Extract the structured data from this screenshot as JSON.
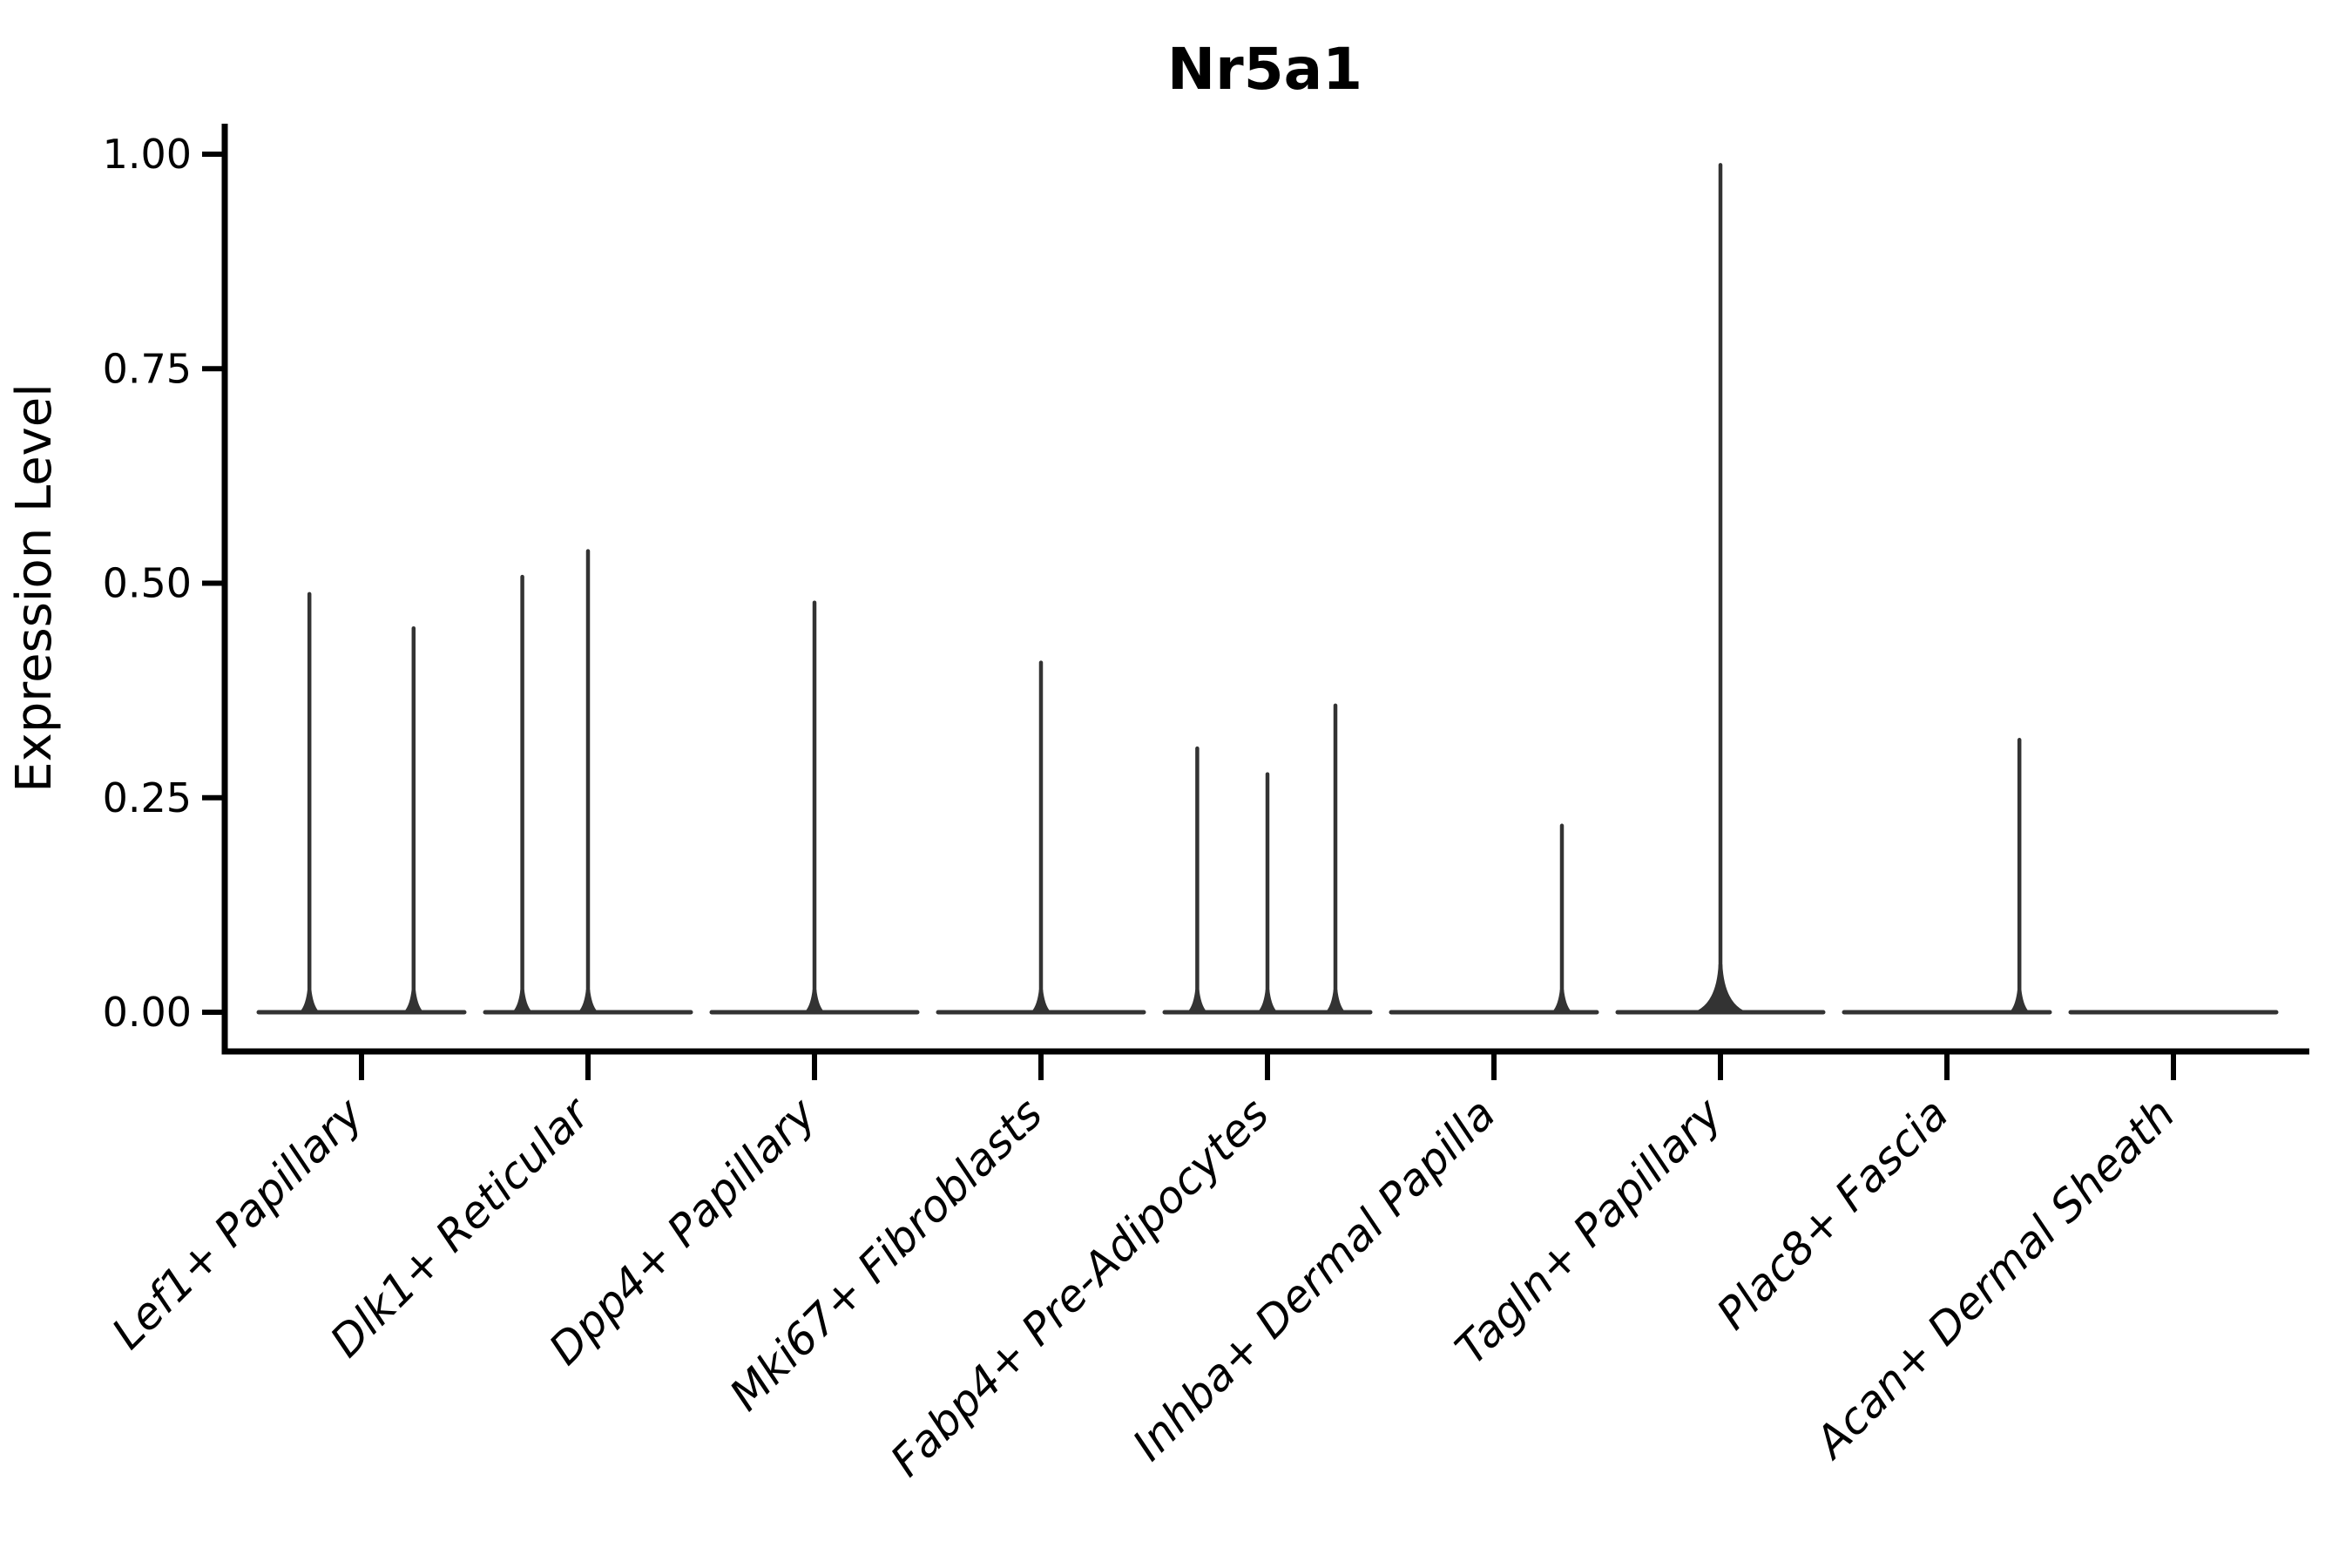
{
  "title": "Nr5a1",
  "y_axis": {
    "label": "Expression Level",
    "tick_labels": [
      "1.00",
      "0.75",
      "0.50",
      "0.25",
      "0.00"
    ],
    "tick_values": [
      1.0,
      0.75,
      0.5,
      0.25,
      0.0
    ]
  },
  "x_axis": {
    "categories": [
      "Lef1+ Papillary",
      "Dlk1+ Reticular",
      "Dpp4+ Papillary",
      "Mki67+ Fibroblasts",
      "Fabp4+ Pre-Adipocytes",
      "Inhba+ Dermal Papilla",
      "Tagln+ Papillary",
      "Plac8+ Fascia",
      "Acan+ Dermal Sheath"
    ]
  },
  "colors": {
    "violin": "#333333",
    "axis": "#000000",
    "text": "#000000",
    "background": "#ffffff"
  },
  "chart_data": {
    "type": "violin",
    "title": "Nr5a1",
    "xlabel": "",
    "ylabel": "Expression Level",
    "ylim": [
      0,
      1.0
    ],
    "yticks": [
      0.0,
      0.25,
      0.5,
      0.75,
      1.0
    ],
    "grid": false,
    "legend": "none",
    "orientation": "vertical",
    "x_label_rotation_deg": 45,
    "categories": [
      "Lef1+ Papillary",
      "Dlk1+ Reticular",
      "Dpp4+ Papillary",
      "Mki67+ Fibroblasts",
      "Fabp4+ Pre-Adipocytes",
      "Inhba+ Dermal Papilla",
      "Tagln+ Papillary",
      "Plac8+ Fascia",
      "Acan+ Dermal Sheath"
    ],
    "violins": [
      {
        "category": "Lef1+ Papillary",
        "baseline_value": 0,
        "spikes": [
          {
            "dx": -0.23,
            "value": 0.49
          },
          {
            "dx": 0.23,
            "value": 0.45
          }
        ]
      },
      {
        "category": "Dlk1+ Reticular",
        "baseline_value": 0,
        "spikes": [
          {
            "dx": -0.29,
            "value": 0.51
          },
          {
            "dx": 0.0,
            "value": 0.54
          }
        ]
      },
      {
        "category": "Dpp4+ Papillary",
        "baseline_value": 0,
        "spikes": [
          {
            "dx": 0.0,
            "value": 0.48
          }
        ]
      },
      {
        "category": "Mki67+ Fibroblasts",
        "baseline_value": 0,
        "spikes": [
          {
            "dx": 0.0,
            "value": 0.41
          }
        ]
      },
      {
        "category": "Fabp4+ Pre-Adipocytes",
        "baseline_value": 0,
        "spikes": [
          {
            "dx": -0.31,
            "value": 0.31
          },
          {
            "dx": 0.0,
            "value": 0.28
          },
          {
            "dx": 0.3,
            "value": 0.36
          }
        ]
      },
      {
        "category": "Inhba+ Dermal Papilla",
        "baseline_value": 0,
        "spikes": [
          {
            "dx": 0.3,
            "value": 0.22
          }
        ]
      },
      {
        "category": "Tagln+ Papillary",
        "baseline_value": 0,
        "spikes": [
          {
            "dx": 0.0,
            "value": 0.99
          }
        ]
      },
      {
        "category": "Plac8+ Fascia",
        "baseline_value": 0,
        "spikes": [
          {
            "dx": 0.32,
            "value": 0.32
          }
        ]
      },
      {
        "category": "Acan+ Dermal Sheath",
        "baseline_value": 0,
        "spikes": []
      }
    ]
  }
}
